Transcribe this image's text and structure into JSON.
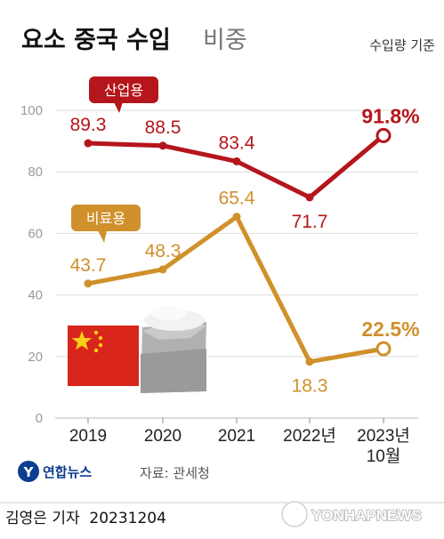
{
  "header": {
    "title_bold": "요소 중국 수입",
    "title_light": "비중",
    "basis": "수입량 기준"
  },
  "chart_data": {
    "type": "line",
    "categories": [
      "2019",
      "2020",
      "2021",
      "2022년",
      "2023년\n10월"
    ],
    "ylim": [
      0,
      100
    ],
    "yticks": [
      "0",
      "20",
      "40",
      "60",
      "80",
      "100"
    ],
    "grid": true,
    "series": [
      {
        "name": "산업용",
        "values": [
          89.3,
          88.5,
          83.4,
          71.7,
          91.8
        ],
        "labels": [
          "89.3",
          "88.5",
          "83.4",
          "71.7",
          "91.8%"
        ],
        "color": "#b5161b"
      },
      {
        "name": "비료용",
        "values": [
          43.7,
          48.3,
          65.4,
          18.3,
          22.5
        ],
        "labels": [
          "43.7",
          "48.3",
          "65.4",
          "18.3",
          "22.5%"
        ],
        "color": "#d0902b"
      }
    ]
  },
  "footer": {
    "brand": "연합뉴스",
    "source": "자료: 관세청",
    "byline": "김영은 기자  20231204",
    "watermark": "YONHAPNEWS"
  },
  "colors": {
    "red": "#b5161b",
    "orange": "#d0902b",
    "flag": "#d9251c",
    "star": "#f7d117",
    "grid": "#d8d8d8",
    "bag": "#a9a9a9",
    "navy": "#0b3d91"
  }
}
